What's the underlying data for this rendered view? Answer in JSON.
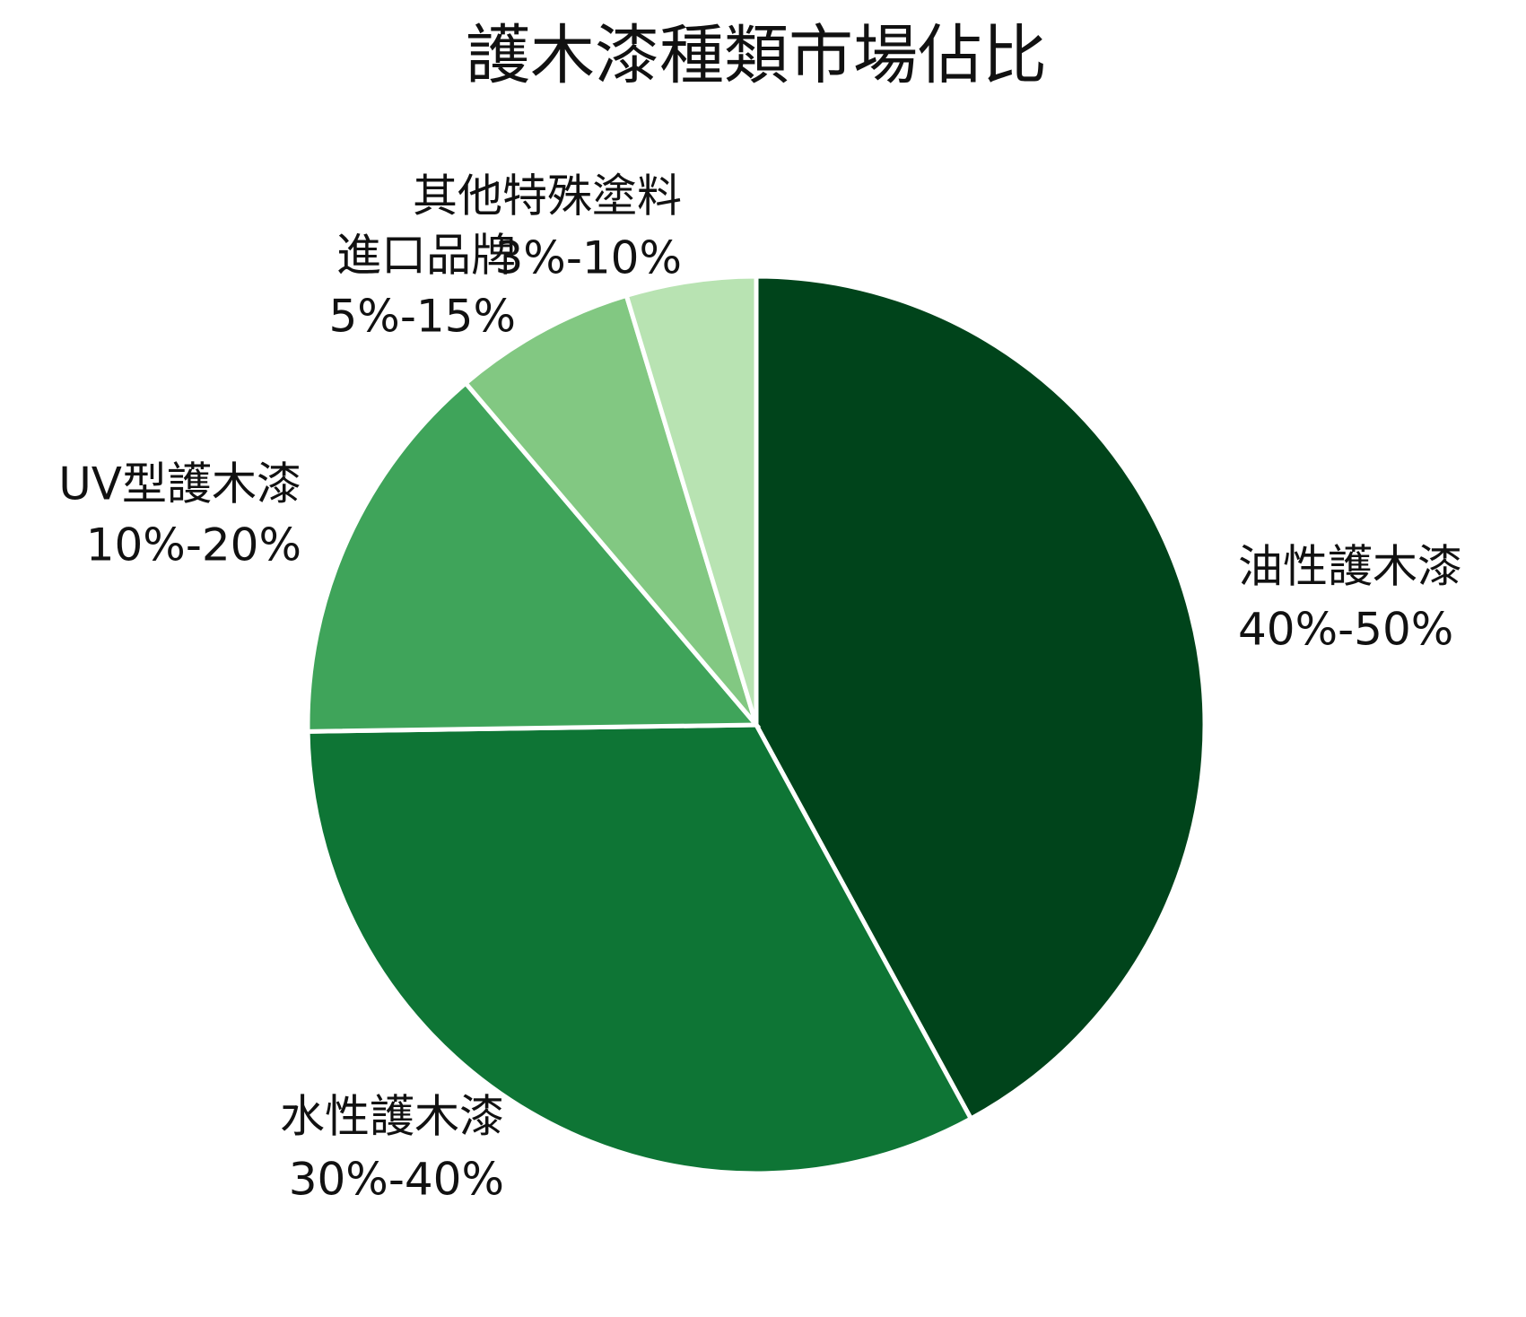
{
  "chart_data": {
    "type": "pie",
    "title": "護木漆種類市場佔比",
    "categories": [
      "油性護木漆",
      "水性護木漆",
      "UV型護木漆",
      "進口品牌",
      "其他特殊塗料"
    ],
    "ranges": [
      "40%-50%",
      "30%-40%",
      "10%-20%",
      "5%-15%",
      "3%-10%"
    ],
    "values": [
      45,
      35,
      15,
      7,
      5
    ],
    "colors": [
      "#00441b",
      "#0e7535",
      "#3fa45a",
      "#82c882",
      "#b8e3b2"
    ]
  }
}
